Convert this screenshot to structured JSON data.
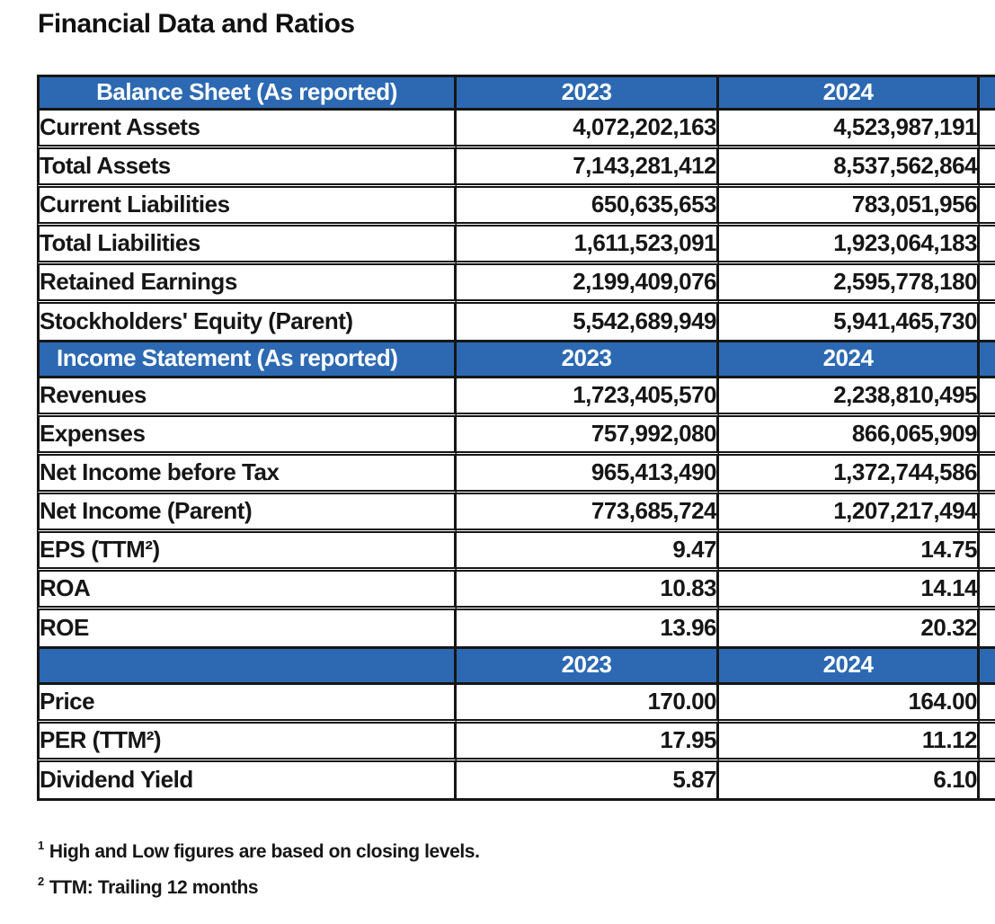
{
  "title": "Financial Data and Ratios",
  "colors": {
    "header_blue": "#2C69B2",
    "border_black": "#161616",
    "text": "#161616",
    "background": "#FFFFFF"
  },
  "table": {
    "sections": [
      {
        "header": "Balance Sheet (As reported)",
        "years": [
          "2023",
          "2024"
        ],
        "rows": [
          {
            "label": "Current Assets",
            "values": [
              "4,072,202,163",
              "4,523,987,191"
            ]
          },
          {
            "label": "Total Assets",
            "values": [
              "7,143,281,412",
              "8,537,562,864"
            ]
          },
          {
            "label": "Current Liabilities",
            "values": [
              "650,635,653",
              "783,051,956"
            ]
          },
          {
            "label": "Total Liabilities",
            "values": [
              "1,611,523,091",
              "1,923,064,183"
            ]
          },
          {
            "label": "Retained Earnings",
            "values": [
              "2,199,409,076",
              "2,595,778,180"
            ]
          },
          {
            "label": "Stockholders' Equity (Parent)",
            "values": [
              "5,542,689,949",
              "5,941,465,730"
            ]
          }
        ]
      },
      {
        "header": "Income Statement (As reported)",
        "years": [
          "2023",
          "2024"
        ],
        "rows": [
          {
            "label": "Revenues",
            "values": [
              "1,723,405,570",
              "2,238,810,495"
            ]
          },
          {
            "label": "Expenses",
            "values": [
              "757,992,080",
              "866,065,909"
            ]
          },
          {
            "label": "Net Income before Tax",
            "values": [
              "965,413,490",
              "1,372,744,586"
            ]
          },
          {
            "label": "Net Income (Parent)",
            "values": [
              "773,685,724",
              "1,207,217,494"
            ]
          },
          {
            "label": "EPS (TTM²)",
            "values": [
              "9.47",
              "14.75"
            ]
          },
          {
            "label": "ROA",
            "values": [
              "10.83",
              "14.14"
            ]
          },
          {
            "label": "ROE",
            "values": [
              "13.96",
              "20.32"
            ]
          }
        ]
      },
      {
        "header": "",
        "years": [
          "2023",
          "2024"
        ],
        "rows": [
          {
            "label": "Price",
            "values": [
              "170.00",
              "164.00"
            ]
          },
          {
            "label": "PER (TTM²)",
            "values": [
              "17.95",
              "11.12"
            ]
          },
          {
            "label": "Dividend Yield",
            "values": [
              "5.87",
              "6.10"
            ]
          }
        ]
      }
    ]
  },
  "footnotes": [
    {
      "marker": "1",
      "text": "High and Low figures are based on closing levels."
    },
    {
      "marker": "2",
      "text": "TTM: Trailing 12 months"
    }
  ]
}
